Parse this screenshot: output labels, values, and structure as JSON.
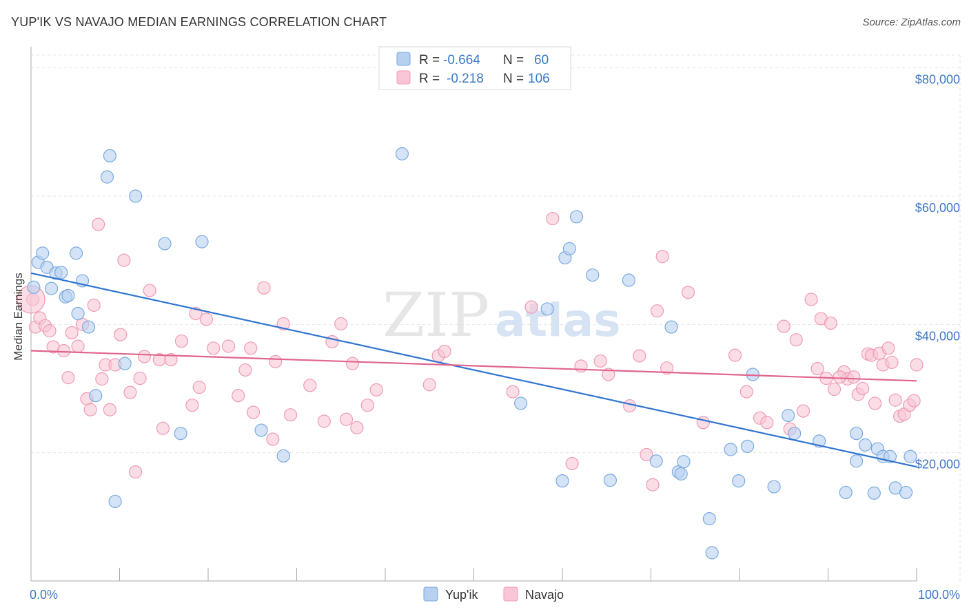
{
  "title": "YUP'IK VS NAVAJO MEDIAN EARNINGS CORRELATION CHART",
  "source": "Source: ZipAtlas.com",
  "watermark": {
    "zip": "ZIP",
    "atlas": "atlas"
  },
  "colors": {
    "blue_fill": "#b7d0f0",
    "blue_stroke": "#7aaae0",
    "blue_line": "#2f74d0",
    "pink_fill": "#f8c6d5",
    "pink_stroke": "#ef9ab4",
    "pink_line": "#e0648e",
    "tick_text": "#3a78c9",
    "grid": "#e3e3e3"
  },
  "stats_legend": [
    {
      "r_label": "R =",
      "r_value": "-0.664",
      "n_label": "N =",
      "n_value": "60",
      "color": "blue"
    },
    {
      "r_label": "R =",
      "r_value": "-0.218",
      "n_label": "N =",
      "n_value": "106",
      "color": "pink"
    }
  ],
  "bottom_legend": [
    "Yup'ik",
    "Navajo"
  ],
  "chart_data": {
    "type": "scatter",
    "xlabel": "",
    "ylabel": "Median Earnings",
    "x_tick_labels": [
      "0.0%",
      "100.0%"
    ],
    "y_tick_labels": [
      "$20,000",
      "$40,000",
      "$60,000",
      "$80,000"
    ],
    "y_ticks": [
      20000,
      40000,
      60000,
      80000
    ],
    "xlim": [
      0,
      100
    ],
    "ylim": [
      0,
      82000
    ],
    "grid": true,
    "series": [
      {
        "name": "Yup'ik",
        "color": "blue",
        "trend": {
          "x": [
            0,
            100
          ],
          "y": [
            48000,
            17800
          ]
        },
        "points": [
          [
            0.3,
            45800
          ],
          [
            0.8,
            49700
          ],
          [
            1.3,
            51100
          ],
          [
            1.8,
            48900
          ],
          [
            2.3,
            45600
          ],
          [
            2.8,
            48000
          ],
          [
            3.4,
            48100
          ],
          [
            3.9,
            44300
          ],
          [
            4.2,
            44500
          ],
          [
            5.1,
            51100
          ],
          [
            5.3,
            41700
          ],
          [
            5.8,
            46800
          ],
          [
            6.5,
            39600
          ],
          [
            7.3,
            28900
          ],
          [
            8.6,
            63000
          ],
          [
            8.9,
            66300
          ],
          [
            9.5,
            12400
          ],
          [
            10.6,
            33900
          ],
          [
            11.8,
            60000
          ],
          [
            15.1,
            52600
          ],
          [
            16.9,
            23000
          ],
          [
            19.3,
            52900
          ],
          [
            26.0,
            23500
          ],
          [
            28.5,
            19500
          ],
          [
            41.9,
            66600
          ],
          [
            55.3,
            27700
          ],
          [
            58.3,
            42400
          ],
          [
            60.0,
            15600
          ],
          [
            60.3,
            50400
          ],
          [
            60.8,
            51800
          ],
          [
            61.6,
            56800
          ],
          [
            63.4,
            47700
          ],
          [
            65.4,
            15700
          ],
          [
            67.5,
            46900
          ],
          [
            70.6,
            18700
          ],
          [
            72.3,
            39600
          ],
          [
            73.1,
            17000
          ],
          [
            73.4,
            16700
          ],
          [
            73.7,
            18600
          ],
          [
            76.6,
            9700
          ],
          [
            76.9,
            4400
          ],
          [
            79.0,
            20500
          ],
          [
            79.9,
            15600
          ],
          [
            80.9,
            21000
          ],
          [
            81.5,
            32200
          ],
          [
            83.9,
            14700
          ],
          [
            85.5,
            25800
          ],
          [
            86.2,
            23000
          ],
          [
            89.0,
            21800
          ],
          [
            92.0,
            13800
          ],
          [
            93.2,
            18700
          ],
          [
            93.2,
            23000
          ],
          [
            94.2,
            21200
          ],
          [
            95.2,
            13700
          ],
          [
            95.6,
            20600
          ],
          [
            96.2,
            19400
          ],
          [
            97.0,
            19400
          ],
          [
            97.6,
            14500
          ],
          [
            98.8,
            13800
          ],
          [
            99.3,
            19400
          ]
        ]
      },
      {
        "name": "Navajo",
        "color": "pink",
        "trend": {
          "x": [
            0,
            100
          ],
          "y": [
            35900,
            31200
          ]
        },
        "points": [
          [
            0.5,
            39600
          ],
          [
            1.0,
            41000
          ],
          [
            1.6,
            39800
          ],
          [
            2.1,
            39000
          ],
          [
            2.5,
            36500
          ],
          [
            3.7,
            35900
          ],
          [
            4.2,
            31700
          ],
          [
            4.6,
            38700
          ],
          [
            5.3,
            36600
          ],
          [
            5.8,
            40000
          ],
          [
            6.3,
            28400
          ],
          [
            6.7,
            26700
          ],
          [
            7.1,
            43000
          ],
          [
            7.6,
            55600
          ],
          [
            8.0,
            31500
          ],
          [
            8.4,
            33700
          ],
          [
            8.9,
            26700
          ],
          [
            9.5,
            33700
          ],
          [
            10.1,
            38400
          ],
          [
            10.5,
            50000
          ],
          [
            11.2,
            29400
          ],
          [
            11.8,
            17000
          ],
          [
            12.3,
            31600
          ],
          [
            12.8,
            35000
          ],
          [
            13.4,
            45300
          ],
          [
            14.5,
            34500
          ],
          [
            14.9,
            23800
          ],
          [
            15.8,
            34500
          ],
          [
            17.0,
            37400
          ],
          [
            18.2,
            27400
          ],
          [
            18.6,
            41700
          ],
          [
            19.0,
            30200
          ],
          [
            19.8,
            40800
          ],
          [
            20.6,
            36300
          ],
          [
            22.3,
            36600
          ],
          [
            23.4,
            28900
          ],
          [
            24.2,
            32900
          ],
          [
            24.8,
            36300
          ],
          [
            25.1,
            26300
          ],
          [
            26.3,
            45700
          ],
          [
            27.3,
            22100
          ],
          [
            27.6,
            34200
          ],
          [
            28.5,
            40100
          ],
          [
            29.3,
            25900
          ],
          [
            31.5,
            30500
          ],
          [
            33.1,
            24900
          ],
          [
            34.0,
            37300
          ],
          [
            35.0,
            40100
          ],
          [
            35.6,
            25200
          ],
          [
            36.3,
            33900
          ],
          [
            36.8,
            23900
          ],
          [
            38.0,
            27400
          ],
          [
            39.0,
            29800
          ],
          [
            45.0,
            30600
          ],
          [
            46.0,
            35100
          ],
          [
            46.7,
            35800
          ],
          [
            54.4,
            29500
          ],
          [
            56.5,
            42700
          ],
          [
            58.9,
            56500
          ],
          [
            61.1,
            18300
          ],
          [
            62.1,
            33500
          ],
          [
            64.3,
            34300
          ],
          [
            65.2,
            32200
          ],
          [
            67.6,
            27300
          ],
          [
            68.7,
            35100
          ],
          [
            69.5,
            19700
          ],
          [
            70.2,
            15000
          ],
          [
            70.7,
            42100
          ],
          [
            71.3,
            50600
          ],
          [
            71.8,
            33200
          ],
          [
            74.2,
            45000
          ],
          [
            75.9,
            24700
          ],
          [
            79.5,
            35200
          ],
          [
            80.8,
            29500
          ],
          [
            82.3,
            25400
          ],
          [
            83.1,
            24700
          ],
          [
            85.0,
            39700
          ],
          [
            85.7,
            23700
          ],
          [
            86.4,
            37600
          ],
          [
            87.2,
            26500
          ],
          [
            88.1,
            43900
          ],
          [
            88.8,
            33100
          ],
          [
            89.2,
            40900
          ],
          [
            89.8,
            31600
          ],
          [
            90.3,
            40200
          ],
          [
            90.7,
            29900
          ],
          [
            91.8,
            32600
          ],
          [
            92.2,
            31500
          ],
          [
            92.9,
            31800
          ],
          [
            93.4,
            29100
          ],
          [
            93.9,
            30000
          ],
          [
            94.5,
            35400
          ],
          [
            94.9,
            35200
          ],
          [
            95.3,
            27700
          ],
          [
            95.8,
            35500
          ],
          [
            96.2,
            33700
          ],
          [
            96.8,
            36300
          ],
          [
            97.2,
            34100
          ],
          [
            97.6,
            28200
          ],
          [
            98.1,
            25700
          ],
          [
            98.6,
            26000
          ],
          [
            99.2,
            27400
          ],
          [
            99.7,
            28100
          ],
          [
            100.0,
            33700
          ],
          [
            91.3,
            31800
          ],
          [
            0.2,
            43900
          ]
        ]
      }
    ]
  }
}
